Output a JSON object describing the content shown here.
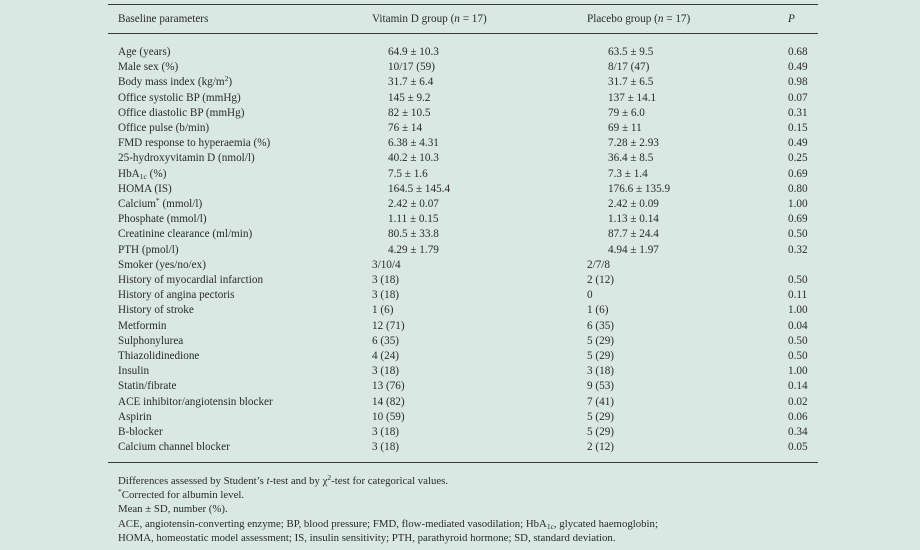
{
  "header": {
    "col0": "Baseline parameters",
    "col1_pre": "Vitamin D group (",
    "col1_n": "n",
    "col1_post": " = 17)",
    "col2_pre": "Placebo group (",
    "col2_n": "n",
    "col2_post": " = 17)",
    "col3": "P"
  },
  "rows": [
    {
      "label": "Age (years)",
      "vitd": "64.9 ± 10.3",
      "placebo": "63.5 ± 9.5",
      "p": "0.68"
    },
    {
      "label": "Male sex (%)",
      "vitd": "10/17 (59)",
      "placebo": "8/17 (47)",
      "p": "0.49"
    },
    {
      "label": "Body mass index (kg/m",
      "label_sup": "2",
      "label_post": ")",
      "vitd": "31.7 ± 6.4",
      "placebo": "31.7 ± 6.5",
      "p": "0.98"
    },
    {
      "label": "Office systolic BP (mmHg)",
      "vitd": "145 ± 9.2",
      "placebo": "137 ± 14.1",
      "p": "0.07"
    },
    {
      "label": "Office diastolic BP (mmHg)",
      "vitd": "82 ± 10.5",
      "placebo": "79 ± 6.0",
      "p": "0.31"
    },
    {
      "label": "Office pulse (b/min)",
      "vitd": "76 ± 14",
      "placebo": "69 ± 11",
      "p": "0.15"
    },
    {
      "label": "FMD response to hyperaemia (%)",
      "vitd": "6.38 ± 4.31",
      "placebo": "7.28 ± 2.93",
      "p": "0.49"
    },
    {
      "label": "25-hydroxyvitamin D (nmol/l)",
      "vitd": "40.2 ± 10.3",
      "placebo": "36.4 ± 8.5",
      "p": "0.25"
    },
    {
      "label": "HbA",
      "label_sub": "1c",
      "label_post": " (%)",
      "vitd": "7.5 ± 1.6",
      "placebo": "7.3 ± 1.4",
      "p": "0.69"
    },
    {
      "label": "HOMA (IS)",
      "vitd": "164.5 ± 145.4",
      "placebo": "176.6 ± 135.9",
      "p": "0.80"
    },
    {
      "label": "Calcium",
      "label_sup": "*",
      "label_post": " (mmol/l)",
      "vitd": "2.42 ± 0.07",
      "placebo": "2.42 ± 0.09",
      "p": "1.00"
    },
    {
      "label": "Phosphate (mmol/l)",
      "vitd": "1.11 ± 0.15",
      "placebo": "1.13 ± 0.14",
      "p": "0.69"
    },
    {
      "label": "Creatinine clearance (ml/min)",
      "vitd": "80.5 ± 33.8",
      "placebo": "87.7 ± 24.4",
      "p": "0.50"
    },
    {
      "label": "PTH (pmol/l)",
      "vitd": "4.29 ± 1.79",
      "placebo": "4.94 ± 1.97",
      "p": "0.32"
    },
    {
      "label": "Smoker (yes/no/ex)",
      "vitd": "3/10/4",
      "placebo": "2/7/8",
      "p": "",
      "cat": true
    },
    {
      "label": "History of myocardial infarction",
      "vitd": "3 (18)",
      "placebo": "2 (12)",
      "p": "0.50",
      "cat": true
    },
    {
      "label": "History of angina pectoris",
      "vitd": "3 (18)",
      "placebo": "0",
      "p": "0.11",
      "cat": true
    },
    {
      "label": "History of stroke",
      "vitd": "1 (6)",
      "placebo": "1 (6)",
      "p": "1.00",
      "cat": true
    },
    {
      "label": "Metformin",
      "vitd": "12 (71)",
      "placebo": "6 (35)",
      "p": "0.04",
      "cat": true
    },
    {
      "label": "Sulphonylurea",
      "vitd": "6 (35)",
      "placebo": "5 (29)",
      "p": "0.50",
      "cat": true
    },
    {
      "label": "Thiazolidinedione",
      "vitd": "4 (24)",
      "placebo": "5 (29)",
      "p": "0.50",
      "cat": true
    },
    {
      "label": "Insulin",
      "vitd": "3 (18)",
      "placebo": "3 (18)",
      "p": "1.00",
      "cat": true
    },
    {
      "label": "Statin/fibrate",
      "vitd": "13 (76)",
      "placebo": "9 (53)",
      "p": "0.14",
      "cat": true
    },
    {
      "label": "ACE inhibitor/angiotensin blocker",
      "vitd": "14 (82)",
      "placebo": "7 (41)",
      "p": "0.02",
      "cat": true
    },
    {
      "label": "Aspirin",
      "vitd": "10 (59)",
      "placebo": "5 (29)",
      "p": "0.06",
      "cat": true
    },
    {
      "label": "B-blocker",
      "vitd": "3 (18)",
      "placebo": "5 (29)",
      "p": "0.34",
      "cat": true
    },
    {
      "label": "Calcium channel blocker",
      "vitd": "3 (18)",
      "placebo": "2 (12)",
      "p": "0.05",
      "cat": true
    }
  ],
  "notes": {
    "n1_a": "Differences assessed by Student’s ",
    "n1_t": "t",
    "n1_b": "-test and by χ",
    "n1_sup": "2",
    "n1_c": "-test for categorical values.",
    "n2_sup": "*",
    "n2": "Corrected for albumin level.",
    "n3": "Mean ± SD, number (%).",
    "n4_a": "ACE, angiotensin-converting enzyme; BP, blood pressure; FMD, flow-mediated vasodilation; HbA",
    "n4_sub": "1c",
    "n4_b": ", glycated haemoglobin;",
    "n5": "HOMA, homeostatic model assessment; IS, insulin sensitivity; PTH, parathyroid hormone; SD, standard deviation."
  },
  "colors": {
    "background": "#d9e8e3",
    "text": "#2a2a2a",
    "rule": "#3a3a3a"
  }
}
